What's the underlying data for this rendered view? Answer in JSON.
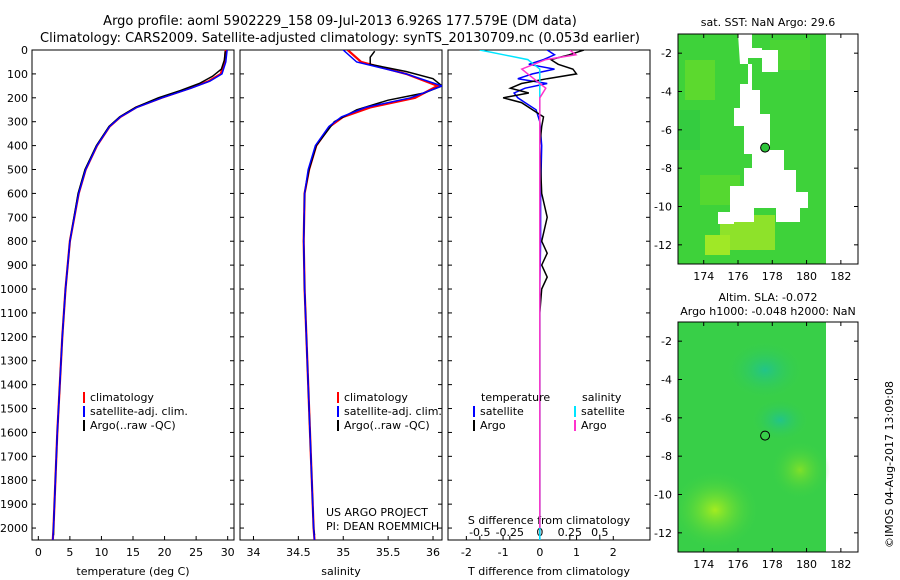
{
  "header": {
    "line1": "Argo profile: aoml 5902229_158 09-Jul-2013 6.926S 177.579E (DM data)",
    "line2": "Climatology: CARS2009. Satellite-adjusted climatology: synTS_20130709.nc (0.053d earlier)"
  },
  "colors": {
    "climatology": "#ff0000",
    "satellite": "#0000ff",
    "argo": "#000000",
    "s_satellite": "#00e5ff",
    "s_argo": "#ff33cc",
    "sst_field": "#3ed23a",
    "sla_field": "#38cf48"
  },
  "chart_data": [
    {
      "type": "line",
      "id": "temperature-profile",
      "xlabel": "temperature (deg C)",
      "xlim": [
        -1,
        31
      ],
      "xticks": [
        0,
        5,
        10,
        15,
        20,
        25,
        30
      ],
      "ylim": [
        2050,
        0
      ],
      "yticks": [
        0,
        100,
        200,
        300,
        400,
        500,
        600,
        700,
        800,
        900,
        1000,
        1100,
        1200,
        1300,
        1400,
        1500,
        1600,
        1700,
        1800,
        1900,
        2000
      ],
      "legend": [
        "climatology",
        "satellite-adj. clim.",
        "Argo(..raw -QC)"
      ],
      "series": [
        {
          "name": "climatology",
          "depth": [
            0,
            50,
            100,
            130,
            160,
            200,
            240,
            280,
            320,
            400,
            500,
            600,
            800,
            1000,
            1200,
            1400,
            1600,
            1800,
            2000,
            2050
          ],
          "values": [
            29.7,
            29.5,
            28.9,
            27.0,
            24.0,
            19.5,
            15.5,
            13.0,
            11.3,
            9.3,
            7.5,
            6.4,
            5.0,
            4.3,
            3.8,
            3.4,
            3.0,
            2.7,
            2.4,
            2.3
          ]
        },
        {
          "name": "satellite-adj. clim.",
          "depth": [
            0,
            50,
            100,
            130,
            160,
            200,
            240,
            280,
            320,
            400,
            500,
            600,
            800,
            1000,
            1200,
            1400,
            1600,
            1800,
            2000,
            2050
          ],
          "values": [
            29.9,
            29.7,
            29.1,
            27.2,
            24.2,
            19.6,
            15.6,
            13.0,
            11.3,
            9.3,
            7.5,
            6.4,
            5.0,
            4.3,
            3.8,
            3.4,
            3.0,
            2.7,
            2.4,
            2.3
          ]
        },
        {
          "name": "Argo(..raw -QC)",
          "depth": [
            5,
            40,
            80,
            110,
            140,
            170,
            200,
            240,
            280,
            320,
            400,
            500,
            600,
            800,
            1000,
            1200,
            1400,
            1600,
            1800,
            2000,
            2030
          ],
          "values": [
            29.6,
            29.5,
            29.0,
            27.6,
            25.5,
            22.5,
            19.0,
            15.4,
            12.9,
            11.2,
            9.2,
            7.4,
            6.3,
            5.0,
            4.3,
            3.8,
            3.4,
            3.0,
            2.7,
            2.4,
            2.4
          ]
        }
      ]
    },
    {
      "type": "line",
      "id": "salinity-profile",
      "xlabel": "salinity",
      "xlim": [
        33.85,
        36.1
      ],
      "xticks": [
        34,
        34.5,
        35,
        35.5,
        36
      ],
      "ylim": [
        2050,
        0
      ],
      "legend": [
        "climatology",
        "satellite-adj. clim.",
        "Argo(..raw -QC)"
      ],
      "note": [
        "US ARGO PROJECT",
        "PI: DEAN ROEMMICH"
      ],
      "series": [
        {
          "name": "climatology",
          "depth": [
            0,
            50,
            100,
            150,
            200,
            240,
            280,
            320,
            400,
            500,
            600,
            800,
            1000,
            1200,
            1400,
            1600,
            1800,
            2000,
            2050
          ],
          "values": [
            35.05,
            35.2,
            35.7,
            36.05,
            35.8,
            35.3,
            35.0,
            34.85,
            34.7,
            34.62,
            34.57,
            34.56,
            34.57,
            34.59,
            34.61,
            34.63,
            34.65,
            34.67,
            34.68
          ]
        },
        {
          "name": "satellite-adj. clim.",
          "depth": [
            0,
            50,
            100,
            150,
            200,
            240,
            280,
            320,
            400,
            500,
            600,
            800,
            1000,
            1200,
            1400,
            1600,
            1800,
            2000,
            2050
          ],
          "values": [
            35.0,
            35.15,
            35.7,
            36.1,
            35.75,
            35.25,
            34.98,
            34.84,
            34.69,
            34.61,
            34.57,
            34.56,
            34.57,
            34.59,
            34.61,
            34.63,
            34.65,
            34.67,
            34.68
          ]
        },
        {
          "name": "Argo(..raw -QC)",
          "depth": [
            5,
            30,
            60,
            90,
            120,
            150,
            180,
            210,
            250,
            300,
            400,
            500,
            600,
            800,
            1000,
            1200,
            1400,
            1600,
            1800,
            2000,
            2030
          ],
          "values": [
            35.35,
            35.3,
            35.3,
            35.7,
            36.0,
            36.1,
            35.9,
            35.5,
            35.15,
            34.9,
            34.7,
            34.62,
            34.57,
            34.56,
            34.57,
            34.59,
            34.61,
            34.63,
            34.65,
            34.67,
            34.68
          ]
        }
      ]
    },
    {
      "type": "line",
      "id": "difference-profile",
      "xlabel": "T difference from climatology",
      "toplabel": "S difference from climatology",
      "xlim": [
        -2.5,
        3
      ],
      "xticks": [
        -2,
        -1,
        0,
        1,
        2
      ],
      "sticks": [
        -0.5,
        -0.25,
        0,
        0.25,
        0.5
      ],
      "sticklabels": [
        "-0.5",
        "-0.25",
        "0",
        "0.25",
        "0.5"
      ],
      "ylim": [
        2050,
        0
      ],
      "legend_t_title": "temperature",
      "legend_s_title": "salinity",
      "legend_t": [
        "satellite",
        "Argo"
      ],
      "legend_s": [
        "satellite",
        "Argo"
      ],
      "series": [
        {
          "name": "T satellite",
          "depth": [
            0,
            20,
            40,
            60,
            80,
            100,
            120,
            140,
            160,
            180,
            200,
            220,
            250,
            300,
            400,
            600,
            800,
            1000,
            1500,
            2000,
            2050
          ],
          "values": [
            0.2,
            0.4,
            0.1,
            -0.3,
            0.4,
            -0.2,
            -0.6,
            0.2,
            -0.4,
            -0.7,
            -0.6,
            -0.4,
            -0.1,
            0,
            0.05,
            0.02,
            0.02,
            0,
            0,
            0,
            0
          ]
        },
        {
          "name": "T Argo",
          "depth": [
            0,
            20,
            40,
            60,
            80,
            100,
            120,
            140,
            160,
            180,
            200,
            220,
            250,
            280,
            320,
            400,
            600,
            700,
            800,
            850,
            900,
            950,
            1000,
            1100,
            1500,
            2000,
            2030
          ],
          "values": [
            1.2,
            0.8,
            0.3,
            0.5,
            0.9,
            1.0,
            0.2,
            -0.5,
            -0.8,
            -0.3,
            -1.0,
            -0.5,
            -0.2,
            0.1,
            0.05,
            0,
            0.05,
            0.2,
            0.05,
            0.2,
            0.05,
            0.2,
            0.05,
            0,
            0,
            0,
            0
          ]
        },
        {
          "name": "S satellite",
          "depth": [
            0,
            20,
            40,
            60,
            80,
            100,
            150,
            200,
            250,
            300,
            400,
            600,
            800,
            1000,
            1500,
            2000,
            2050
          ],
          "values": [
            -0.5,
            -0.3,
            -0.1,
            -0.05,
            0,
            0,
            0,
            0,
            0,
            0,
            0,
            0,
            0,
            0,
            0,
            0,
            0
          ]
        },
        {
          "name": "S Argo",
          "depth": [
            0,
            20,
            40,
            60,
            80,
            100,
            120,
            140,
            160,
            200,
            250,
            300,
            400,
            600,
            1000,
            2000
          ],
          "values": [
            0.25,
            0.3,
            0.05,
            -0.05,
            -0.15,
            -0.1,
            -0.05,
            0,
            0.05,
            0,
            0,
            0,
            0,
            0,
            0,
            0
          ]
        }
      ]
    }
  ],
  "sst_map": {
    "title": "sat. SST: NaN Argo: 29.6",
    "xticks": [
      174,
      176,
      178,
      180,
      182
    ],
    "yticks": [
      -2,
      -4,
      -6,
      -8,
      -10,
      -12
    ],
    "xlim": [
      172.5,
      183
    ],
    "ylim": [
      -13,
      -1
    ]
  },
  "sla_map": {
    "title1": "Altim. SLA: -0.072",
    "title2": "Argo h1000: -0.048 h2000: NaN",
    "xticks": [
      174,
      176,
      178,
      180,
      182
    ],
    "yticks": [
      -2,
      -4,
      -6,
      -8,
      -10,
      -12
    ],
    "xlim": [
      172.5,
      183
    ],
    "ylim": [
      -13,
      -1
    ]
  },
  "float_position": {
    "lon": 177.579,
    "lat": -6.926
  },
  "timestamp": "©IMOS 04-Aug-2017 13:09:08"
}
